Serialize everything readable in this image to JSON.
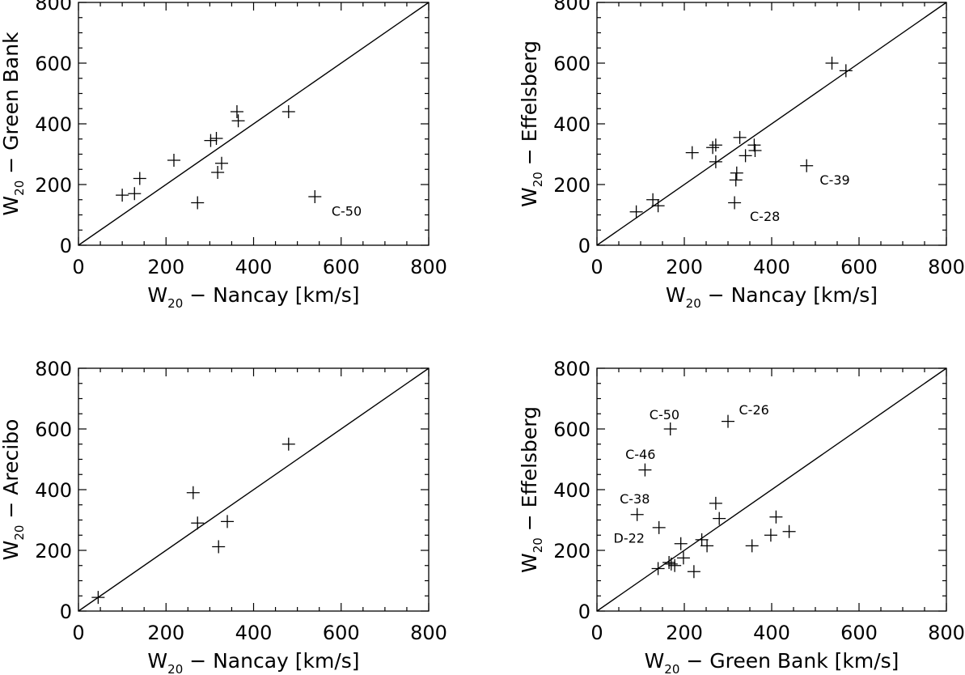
{
  "chart_data": [
    {
      "type": "scatter",
      "xlabel": {
        "main": "W",
        "sub": "20",
        "rest": " − Nancay [km/s]"
      },
      "ylabel": {
        "main": "W",
        "sub": "20",
        "rest": " − Green Bank"
      },
      "xlim": [
        0,
        800
      ],
      "ylim": [
        0,
        800
      ],
      "ticks": [
        "0",
        "200",
        "400",
        "600",
        "800"
      ],
      "diagonal": true,
      "points": [
        {
          "x": 100,
          "y": 165
        },
        {
          "x": 128,
          "y": 170
        },
        {
          "x": 140,
          "y": 220
        },
        {
          "x": 218,
          "y": 280
        },
        {
          "x": 272,
          "y": 140
        },
        {
          "x": 302,
          "y": 345
        },
        {
          "x": 315,
          "y": 352
        },
        {
          "x": 318,
          "y": 240
        },
        {
          "x": 327,
          "y": 270
        },
        {
          "x": 362,
          "y": 440
        },
        {
          "x": 365,
          "y": 410
        },
        {
          "x": 480,
          "y": 440
        },
        {
          "x": 540,
          "y": 160
        }
      ],
      "annotations": [
        {
          "text": "C-50",
          "x": 578,
          "y": 98
        }
      ]
    },
    {
      "type": "scatter",
      "xlabel": {
        "main": "W",
        "sub": "20",
        "rest": " − Nancay [km/s]"
      },
      "ylabel": {
        "main": "W",
        "sub": "20",
        "rest": " − Effelsberg"
      },
      "xlim": [
        0,
        800
      ],
      "ylim": [
        0,
        800
      ],
      "ticks": [
        "0",
        "200",
        "400",
        "600",
        "800"
      ],
      "diagonal": true,
      "points": [
        {
          "x": 90,
          "y": 110
        },
        {
          "x": 128,
          "y": 150
        },
        {
          "x": 140,
          "y": 130
        },
        {
          "x": 218,
          "y": 305
        },
        {
          "x": 265,
          "y": 322
        },
        {
          "x": 272,
          "y": 330
        },
        {
          "x": 272,
          "y": 275
        },
        {
          "x": 315,
          "y": 140
        },
        {
          "x": 318,
          "y": 215
        },
        {
          "x": 320,
          "y": 238
        },
        {
          "x": 327,
          "y": 355
        },
        {
          "x": 340,
          "y": 295
        },
        {
          "x": 360,
          "y": 330
        },
        {
          "x": 362,
          "y": 312
        },
        {
          "x": 480,
          "y": 262
        },
        {
          "x": 538,
          "y": 600
        },
        {
          "x": 570,
          "y": 575
        }
      ],
      "annotations": [
        {
          "text": "C-39",
          "x": 510,
          "y": 200
        },
        {
          "text": "C-28",
          "x": 350,
          "y": 80
        }
      ]
    },
    {
      "type": "scatter",
      "xlabel": {
        "main": "W",
        "sub": "20",
        "rest": " − Nancay [km/s]"
      },
      "ylabel": {
        "main": "W",
        "sub": "20",
        "rest": " − Arecibo"
      },
      "xlim": [
        0,
        800
      ],
      "ylim": [
        0,
        800
      ],
      "ticks": [
        "0",
        "200",
        "400",
        "600",
        "800"
      ],
      "diagonal": true,
      "points": [
        {
          "x": 45,
          "y": 45
        },
        {
          "x": 262,
          "y": 390
        },
        {
          "x": 272,
          "y": 290
        },
        {
          "x": 320,
          "y": 212
        },
        {
          "x": 340,
          "y": 295
        },
        {
          "x": 480,
          "y": 550
        }
      ],
      "annotations": []
    },
    {
      "type": "scatter",
      "xlabel": {
        "main": "W",
        "sub": "20",
        "rest": " − Green Bank [km/s]"
      },
      "ylabel": {
        "main": "W",
        "sub": "20",
        "rest": " − Effelsberg"
      },
      "xlim": [
        0,
        800
      ],
      "ylim": [
        0,
        800
      ],
      "ticks": [
        "0",
        "200",
        "400",
        "600",
        "800"
      ],
      "diagonal": true,
      "points": [
        {
          "x": 92,
          "y": 318
        },
        {
          "x": 110,
          "y": 465
        },
        {
          "x": 140,
          "y": 140
        },
        {
          "x": 142,
          "y": 275
        },
        {
          "x": 165,
          "y": 160
        },
        {
          "x": 168,
          "y": 600
        },
        {
          "x": 170,
          "y": 155
        },
        {
          "x": 178,
          "y": 150
        },
        {
          "x": 192,
          "y": 222
        },
        {
          "x": 198,
          "y": 175
        },
        {
          "x": 222,
          "y": 130
        },
        {
          "x": 240,
          "y": 235
        },
        {
          "x": 252,
          "y": 215
        },
        {
          "x": 272,
          "y": 355
        },
        {
          "x": 280,
          "y": 305
        },
        {
          "x": 300,
          "y": 625
        },
        {
          "x": 355,
          "y": 215
        },
        {
          "x": 398,
          "y": 250
        },
        {
          "x": 410,
          "y": 310
        },
        {
          "x": 440,
          "y": 262
        }
      ],
      "annotations": [
        {
          "text": "C-26",
          "x": 325,
          "y": 648
        },
        {
          "text": "C-50",
          "x": 120,
          "y": 632
        },
        {
          "text": "C-46",
          "x": 65,
          "y": 502
        },
        {
          "text": "C-38",
          "x": 52,
          "y": 355
        },
        {
          "text": "D-22",
          "x": 38,
          "y": 225
        }
      ]
    }
  ]
}
